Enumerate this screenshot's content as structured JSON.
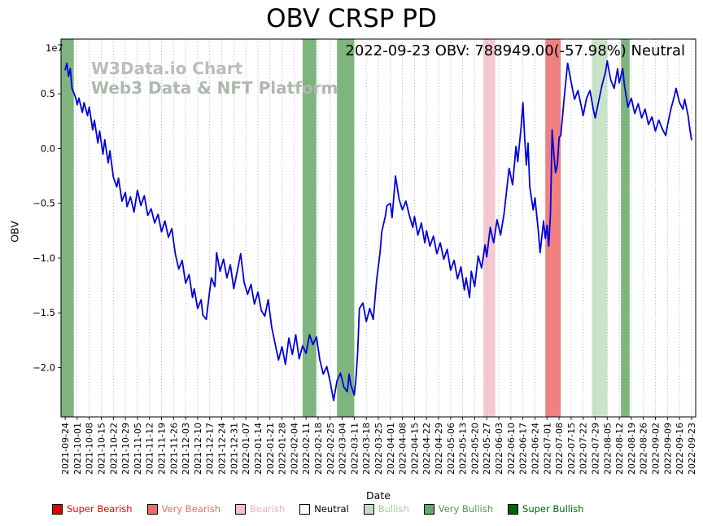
{
  "header": {
    "title": "OBV CRSP PD",
    "annotation": "2022-09-23 OBV: 788949.00(-57.98%) Neutral"
  },
  "watermark": {
    "line1": "W3Data.io Chart",
    "line2": "Web3 Data & NFT Platform"
  },
  "axes": {
    "ylabel": "OBV",
    "xlabel": "Date",
    "offset_text": "1e7"
  },
  "sentiment_colors": {
    "super_bearish": "#e60000",
    "very_bearish": "#ef6a6a",
    "bearish": "#f5bfc9",
    "neutral": "#ffffff",
    "bullish": "#bfe0bf",
    "very_bullish": "#66a866",
    "super_bullish": "#006400"
  },
  "legend_text_colors": {
    "super_bearish": "#e60000",
    "very_bearish": "#ef6a6a",
    "bearish": "#f2aebc",
    "neutral": "#000000",
    "bullish": "#a6cda6",
    "very_bullish": "#4d9a4d",
    "super_bullish": "#006400"
  },
  "legend": {
    "position": "bottom",
    "items": [
      {
        "key": "super_bearish",
        "label": "Super Bearish"
      },
      {
        "key": "very_bearish",
        "label": "Very Bearish"
      },
      {
        "key": "bearish",
        "label": "Bearish"
      },
      {
        "key": "neutral",
        "label": "Neutral"
      },
      {
        "key": "bullish",
        "label": "Bullish"
      },
      {
        "key": "very_bullish",
        "label": "Very Bullish"
      },
      {
        "key": "super_bullish",
        "label": "Super Bullish"
      }
    ]
  },
  "chart_data": {
    "type": "line",
    "title": "OBV CRSP PD",
    "xlabel": "Date",
    "ylabel": "OBV",
    "y_unit": "1e7",
    "grid": "vertical-dotted",
    "line_color": "#0000dd",
    "x_base_date": "2021-09-24",
    "xlim_days": [
      -2.4,
      366.4
    ],
    "ylim": [
      -2.45,
      1.0
    ],
    "yticks": [
      {
        "v": 0.5,
        "label": "0.5"
      },
      {
        "v": 0.0,
        "label": "0.0"
      },
      {
        "v": -0.5,
        "label": "−0.5"
      },
      {
        "v": -1.0,
        "label": "−1.0"
      },
      {
        "v": -1.5,
        "label": "−1.5"
      },
      {
        "v": -2.0,
        "label": "−2.0"
      }
    ],
    "xticks": [
      "2021-09-24",
      "2021-10-01",
      "2021-10-08",
      "2021-10-15",
      "2021-10-22",
      "2021-10-29",
      "2021-11-05",
      "2021-11-12",
      "2021-11-19",
      "2021-11-26",
      "2021-12-03",
      "2021-12-10",
      "2021-12-17",
      "2021-12-24",
      "2021-12-31",
      "2022-01-07",
      "2022-01-14",
      "2022-01-21",
      "2022-01-28",
      "2022-02-04",
      "2022-02-11",
      "2022-02-18",
      "2022-02-25",
      "2022-03-04",
      "2022-03-11",
      "2022-03-18",
      "2022-03-25",
      "2022-04-01",
      "2022-04-08",
      "2022-04-15",
      "2022-04-22",
      "2022-04-29",
      "2022-05-06",
      "2022-05-13",
      "2022-05-20",
      "2022-05-27",
      "2022-06-03",
      "2022-06-10",
      "2022-06-17",
      "2022-06-24",
      "2022-07-01",
      "2022-07-08",
      "2022-07-15",
      "2022-07-22",
      "2022-07-29",
      "2022-08-05",
      "2022-08-12",
      "2022-08-19",
      "2022-08-26",
      "2022-09-02",
      "2022-09-09",
      "2022-09-16",
      "2022-09-23"
    ],
    "bands": [
      {
        "start": "2021-09-21",
        "end": "2021-09-29",
        "sentiment": "very_bullish"
      },
      {
        "start": "2022-02-09",
        "end": "2022-02-17",
        "sentiment": "very_bullish"
      },
      {
        "start": "2022-03-01",
        "end": "2022-03-11",
        "sentiment": "very_bullish"
      },
      {
        "start": "2022-05-25",
        "end": "2022-06-01",
        "sentiment": "bearish"
      },
      {
        "start": "2022-06-30",
        "end": "2022-07-09",
        "sentiment": "very_bearish"
      },
      {
        "start": "2022-07-27",
        "end": "2022-08-05",
        "sentiment": "bullish"
      },
      {
        "start": "2022-08-13",
        "end": "2022-08-18",
        "sentiment": "very_bullish"
      }
    ],
    "last_point": {
      "date": "2022-09-23",
      "obv": 788949.0,
      "change_pct": -57.98,
      "signal": "Neutral"
    },
    "series": [
      {
        "name": "OBV",
        "color": "#0000dd",
        "points_format": "[days_since_2021-09-24, value_in_1e7_units]",
        "points": [
          [
            0,
            0.72
          ],
          [
            1,
            0.78
          ],
          [
            2,
            0.66
          ],
          [
            3,
            0.73
          ],
          [
            4,
            0.55
          ],
          [
            6,
            0.47
          ],
          [
            7,
            0.4
          ],
          [
            8,
            0.46
          ],
          [
            10,
            0.33
          ],
          [
            11,
            0.42
          ],
          [
            13,
            0.3
          ],
          [
            14,
            0.38
          ],
          [
            16,
            0.17
          ],
          [
            17,
            0.26
          ],
          [
            19,
            0.05
          ],
          [
            20,
            0.16
          ],
          [
            22,
            -0.05
          ],
          [
            23,
            0.08
          ],
          [
            25,
            -0.13
          ],
          [
            26,
            -0.02
          ],
          [
            28,
            -0.26
          ],
          [
            30,
            -0.35
          ],
          [
            31,
            -0.27
          ],
          [
            33,
            -0.48
          ],
          [
            35,
            -0.4
          ],
          [
            36,
            -0.53
          ],
          [
            38,
            -0.44
          ],
          [
            40,
            -0.58
          ],
          [
            42,
            -0.38
          ],
          [
            44,
            -0.52
          ],
          [
            46,
            -0.43
          ],
          [
            48,
            -0.61
          ],
          [
            50,
            -0.55
          ],
          [
            52,
            -0.68
          ],
          [
            54,
            -0.6
          ],
          [
            56,
            -0.76
          ],
          [
            58,
            -0.66
          ],
          [
            60,
            -0.81
          ],
          [
            62,
            -0.73
          ],
          [
            64,
            -0.96
          ],
          [
            66,
            -1.1
          ],
          [
            68,
            -1.02
          ],
          [
            70,
            -1.23
          ],
          [
            72,
            -1.15
          ],
          [
            74,
            -1.36
          ],
          [
            75,
            -1.28
          ],
          [
            77,
            -1.46
          ],
          [
            79,
            -1.38
          ],
          [
            80,
            -1.52
          ],
          [
            82,
            -1.56
          ],
          [
            84,
            -1.3
          ],
          [
            85,
            -1.18
          ],
          [
            87,
            -1.26
          ],
          [
            88,
            -0.95
          ],
          [
            90,
            -1.12
          ],
          [
            92,
            -1.01
          ],
          [
            94,
            -1.18
          ],
          [
            96,
            -1.06
          ],
          [
            98,
            -1.28
          ],
          [
            100,
            -1.12
          ],
          [
            102,
            -0.96
          ],
          [
            104,
            -1.22
          ],
          [
            106,
            -1.33
          ],
          [
            108,
            -1.24
          ],
          [
            110,
            -1.42
          ],
          [
            112,
            -1.31
          ],
          [
            114,
            -1.48
          ],
          [
            116,
            -1.53
          ],
          [
            118,
            -1.38
          ],
          [
            120,
            -1.63
          ],
          [
            122,
            -1.78
          ],
          [
            124,
            -1.93
          ],
          [
            126,
            -1.81
          ],
          [
            128,
            -1.97
          ],
          [
            130,
            -1.73
          ],
          [
            132,
            -1.88
          ],
          [
            134,
            -1.7
          ],
          [
            136,
            -1.92
          ],
          [
            138,
            -1.8
          ],
          [
            140,
            -1.87
          ],
          [
            142,
            -1.7
          ],
          [
            144,
            -1.79
          ],
          [
            146,
            -1.72
          ],
          [
            148,
            -1.93
          ],
          [
            150,
            -2.06
          ],
          [
            152,
            -1.99
          ],
          [
            154,
            -2.13
          ],
          [
            156,
            -2.3
          ],
          [
            158,
            -2.12
          ],
          [
            160,
            -2.05
          ],
          [
            162,
            -2.18
          ],
          [
            164,
            -2.22
          ],
          [
            165,
            -2.06
          ],
          [
            166,
            -2.16
          ],
          [
            168,
            -2.25
          ],
          [
            169,
            -2.1
          ],
          [
            170,
            -1.86
          ],
          [
            171,
            -1.46
          ],
          [
            173,
            -1.41
          ],
          [
            175,
            -1.58
          ],
          [
            177,
            -1.46
          ],
          [
            179,
            -1.56
          ],
          [
            181,
            -1.2
          ],
          [
            183,
            -0.95
          ],
          [
            184,
            -0.76
          ],
          [
            186,
            -0.62
          ],
          [
            187,
            -0.52
          ],
          [
            189,
            -0.5
          ],
          [
            190,
            -0.63
          ],
          [
            192,
            -0.25
          ],
          [
            194,
            -0.46
          ],
          [
            196,
            -0.56
          ],
          [
            198,
            -0.48
          ],
          [
            200,
            -0.61
          ],
          [
            202,
            -0.72
          ],
          [
            203,
            -0.62
          ],
          [
            205,
            -0.79
          ],
          [
            207,
            -0.68
          ],
          [
            209,
            -0.86
          ],
          [
            210,
            -0.75
          ],
          [
            212,
            -0.89
          ],
          [
            214,
            -0.8
          ],
          [
            216,
            -0.96
          ],
          [
            218,
            -0.86
          ],
          [
            220,
            -1.01
          ],
          [
            222,
            -0.92
          ],
          [
            224,
            -1.11
          ],
          [
            226,
            -1.02
          ],
          [
            228,
            -1.19
          ],
          [
            230,
            -1.08
          ],
          [
            232,
            -1.29
          ],
          [
            233,
            -1.18
          ],
          [
            235,
            -1.36
          ],
          [
            236,
            -1.12
          ],
          [
            238,
            -1.26
          ],
          [
            240,
            -0.98
          ],
          [
            242,
            -1.09
          ],
          [
            244,
            -0.88
          ],
          [
            245,
            -0.99
          ],
          [
            247,
            -0.72
          ],
          [
            249,
            -0.86
          ],
          [
            251,
            -0.65
          ],
          [
            253,
            -0.79
          ],
          [
            255,
            -0.6
          ],
          [
            256,
            -0.46
          ],
          [
            258,
            -0.18
          ],
          [
            260,
            -0.33
          ],
          [
            262,
            0.02
          ],
          [
            263,
            -0.12
          ],
          [
            265,
            0.2
          ],
          [
            266,
            0.42
          ],
          [
            267,
            0.1
          ],
          [
            268,
            -0.15
          ],
          [
            269,
            0.05
          ],
          [
            270,
            -0.35
          ],
          [
            272,
            -0.56
          ],
          [
            273,
            -0.45
          ],
          [
            275,
            -0.76
          ],
          [
            276,
            -0.95
          ],
          [
            278,
            -0.66
          ],
          [
            279,
            -0.82
          ],
          [
            280,
            -0.7
          ],
          [
            281,
            -0.89
          ],
          [
            282,
            -0.6
          ],
          [
            283,
            0.17
          ],
          [
            284,
            -0.05
          ],
          [
            285,
            -0.22
          ],
          [
            286,
            -0.15
          ],
          [
            287,
            0.1
          ],
          [
            288,
            0.12
          ],
          [
            290,
            0.46
          ],
          [
            292,
            0.78
          ],
          [
            294,
            0.61
          ],
          [
            296,
            0.45
          ],
          [
            298,
            0.53
          ],
          [
            300,
            0.38
          ],
          [
            301,
            0.3
          ],
          [
            303,
            0.46
          ],
          [
            305,
            0.53
          ],
          [
            307,
            0.35
          ],
          [
            308,
            0.28
          ],
          [
            310,
            0.43
          ],
          [
            312,
            0.58
          ],
          [
            314,
            0.7
          ],
          [
            315,
            0.8
          ],
          [
            317,
            0.63
          ],
          [
            319,
            0.55
          ],
          [
            321,
            0.73
          ],
          [
            322,
            0.6
          ],
          [
            324,
            0.73
          ],
          [
            325,
            0.58
          ],
          [
            327,
            0.38
          ],
          [
            329,
            0.46
          ],
          [
            331,
            0.32
          ],
          [
            333,
            0.41
          ],
          [
            335,
            0.28
          ],
          [
            337,
            0.36
          ],
          [
            339,
            0.22
          ],
          [
            341,
            0.29
          ],
          [
            343,
            0.16
          ],
          [
            345,
            0.26
          ],
          [
            347,
            0.18
          ],
          [
            349,
            0.12
          ],
          [
            350,
            0.21
          ],
          [
            352,
            0.36
          ],
          [
            354,
            0.48
          ],
          [
            355,
            0.55
          ],
          [
            357,
            0.42
          ],
          [
            359,
            0.36
          ],
          [
            360,
            0.45
          ],
          [
            362,
            0.3
          ],
          [
            363,
            0.18
          ],
          [
            364,
            0.08
          ]
        ]
      }
    ]
  }
}
